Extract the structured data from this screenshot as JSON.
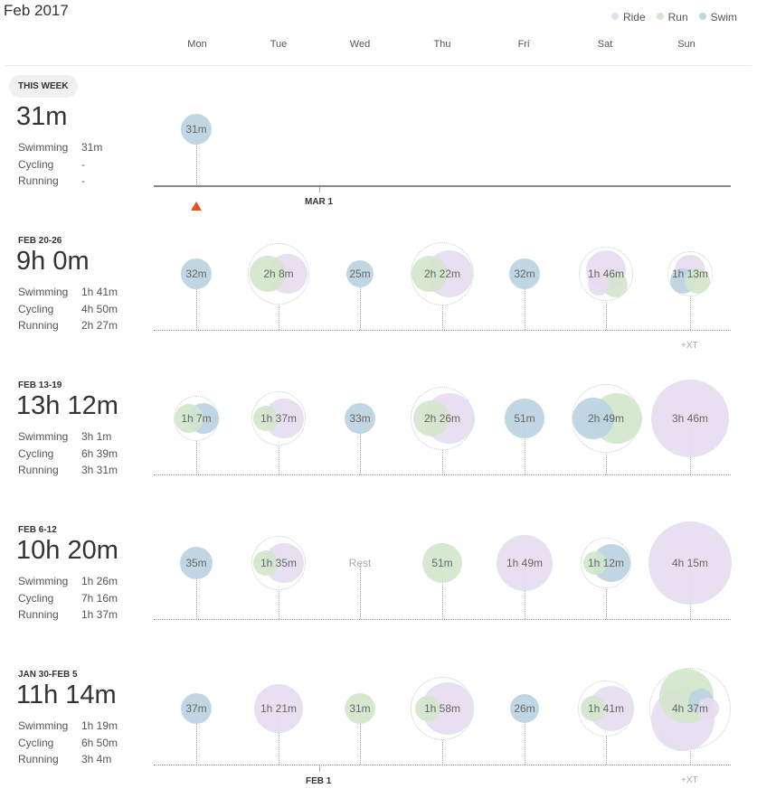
{
  "title": "Feb 2017",
  "legend": [
    {
      "label": "Ride",
      "color": "#e6e0ee"
    },
    {
      "label": "Run",
      "color": "#d6e6d0"
    },
    {
      "label": "Swim",
      "color": "#bcd5e1"
    }
  ],
  "colors": {
    "ride": "#e6dcef",
    "run": "#d3e5cc",
    "swim": "#b9d3e0",
    "marker": "#e8501c"
  },
  "days": [
    "Mon",
    "Tue",
    "Wed",
    "Thu",
    "Fri",
    "Sat",
    "Sun"
  ],
  "markers": {
    "mar1": "MAR 1",
    "feb1": "FEB 1",
    "xt": "+XT"
  },
  "weeks": [
    {
      "label": "THIS WEEK",
      "total": "31m",
      "stats": [
        {
          "sport": "Swimming",
          "value": "31m"
        },
        {
          "sport": "Cycling",
          "value": "-"
        },
        {
          "sport": "Running",
          "value": "-"
        }
      ],
      "days": [
        {
          "label": "31m",
          "sports": [
            "swim"
          ]
        },
        null,
        null,
        null,
        null,
        null,
        null
      ]
    },
    {
      "label": "FEB 20-26",
      "total": "9h 0m",
      "stats": [
        {
          "sport": "Swimming",
          "value": "1h 41m"
        },
        {
          "sport": "Cycling",
          "value": "4h 50m"
        },
        {
          "sport": "Running",
          "value": "2h 27m"
        }
      ],
      "days": [
        {
          "label": "32m",
          "sports": [
            "swim"
          ]
        },
        {
          "label": "2h 8m",
          "sports": [
            "ride",
            "run"
          ]
        },
        {
          "label": "25m",
          "sports": [
            "swim"
          ]
        },
        {
          "label": "2h 22m",
          "sports": [
            "ride",
            "run"
          ]
        },
        {
          "label": "32m",
          "sports": [
            "swim"
          ]
        },
        {
          "label": "1h 46m",
          "sports": [
            "ride",
            "run",
            "ride"
          ]
        },
        {
          "label": "1h 13m",
          "sports": [
            "ride",
            "swim",
            "run"
          ]
        }
      ],
      "xt": true
    },
    {
      "label": "FEB 13-19",
      "total": "13h 12m",
      "stats": [
        {
          "sport": "Swimming",
          "value": "3h 1m"
        },
        {
          "sport": "Cycling",
          "value": "6h 39m"
        },
        {
          "sport": "Running",
          "value": "3h 31m"
        }
      ],
      "days": [
        {
          "label": "1h 7m",
          "sports": [
            "swim",
            "run"
          ]
        },
        {
          "label": "1h 37m",
          "sports": [
            "ride",
            "run"
          ]
        },
        {
          "label": "33m",
          "sports": [
            "swim"
          ]
        },
        {
          "label": "2h 26m",
          "sports": [
            "ride",
            "run"
          ]
        },
        {
          "label": "51m",
          "sports": [
            "swim"
          ]
        },
        {
          "label": "2h 49m",
          "sports": [
            "run",
            "swim"
          ]
        },
        {
          "label": "3h 46m",
          "sports": [
            "ride"
          ]
        }
      ]
    },
    {
      "label": "FEB 6-12",
      "total": "10h 20m",
      "stats": [
        {
          "sport": "Swimming",
          "value": "1h 26m"
        },
        {
          "sport": "Cycling",
          "value": "7h 16m"
        },
        {
          "sport": "Running",
          "value": "1h 37m"
        }
      ],
      "days": [
        {
          "label": "35m",
          "sports": [
            "swim"
          ]
        },
        {
          "label": "1h 35m",
          "sports": [
            "ride",
            "run"
          ]
        },
        {
          "label": "Rest",
          "sports": []
        },
        {
          "label": "51m",
          "sports": [
            "run"
          ]
        },
        {
          "label": "1h 49m",
          "sports": [
            "ride"
          ]
        },
        {
          "label": "1h 12m",
          "sports": [
            "swim",
            "run"
          ]
        },
        {
          "label": "4h 15m",
          "sports": [
            "ride"
          ]
        }
      ]
    },
    {
      "label": "JAN 30-FEB 5",
      "total": "11h 14m",
      "stats": [
        {
          "sport": "Swimming",
          "value": "1h 19m"
        },
        {
          "sport": "Cycling",
          "value": "6h 50m"
        },
        {
          "sport": "Running",
          "value": "3h 4m"
        }
      ],
      "days": [
        {
          "label": "37m",
          "sports": [
            "swim"
          ]
        },
        {
          "label": "1h 21m",
          "sports": [
            "ride"
          ]
        },
        {
          "label": "31m",
          "sports": [
            "run"
          ]
        },
        {
          "label": "1h 58m",
          "sports": [
            "ride",
            "run"
          ]
        },
        {
          "label": "26m",
          "sports": [
            "swim"
          ]
        },
        {
          "label": "1h 41m",
          "sports": [
            "ride",
            "run"
          ]
        },
        {
          "label": "4h 37m",
          "sports": [
            "ride",
            "run",
            "swim",
            "ride"
          ]
        }
      ],
      "xt": true
    }
  ]
}
